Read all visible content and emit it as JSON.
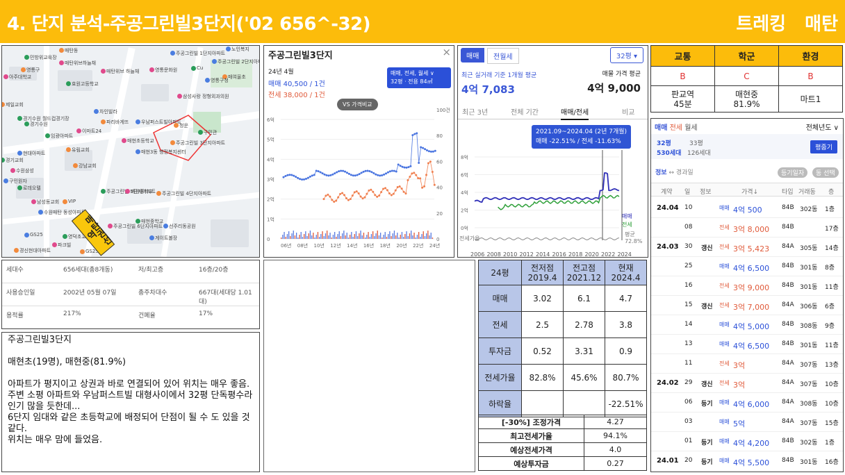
{
  "header": {
    "title": "4. 단지 분석-주공그린빌3단지('02 656^-32)",
    "right": "트레킹 매탄"
  },
  "map": {
    "labels": [
      "노인복지",
      "매탄동",
      "민방위교육장",
      "매탄위브하늘채",
      "주공그린빌 1단지아파트",
      "영통구",
      "효원고등학교",
      "영통문화원",
      "주공그린빌 2단지아파트",
      "매여울초",
      "Cu",
      "매탄위브 하늘채",
      "영통구청",
      "제일교회",
      "경기수원 월드컵경기장",
      "삼성사랑 정형외과의원",
      "차인빌라",
      "파리바게뜨",
      "경기수원",
      "이마트24",
      "우남퍼스트빌아파트",
      "청운",
      "임광아파트",
      "매현초등학교",
      "현대아파트",
      "주공그린빌 3단지아파트",
      "구민관",
      "아주대학교",
      "매현3동 행정복지센터",
      "유림교회",
      "경기교회",
      "수원삼성",
      "구민원자",
      "강남교회",
      "로데오텔",
      "남성동교회",
      "GS25",
      "주공그린빌 4단지아파트",
      "주공그린빌 5단지아파트",
      "매원중학교",
      "수원매탄 동성아파트",
      "VIP",
      "매현중학교",
      "주공그린빌 6단지아파트",
      "선주리동공원",
      "경신현대아파트",
      "영덕초교",
      "파크빌",
      "게이트볼장",
      "GS25"
    ],
    "yellow_label": "매탄권선역"
  },
  "popup": {
    "title": "주공그린빌3단지",
    "close": "×",
    "month": "24년 4월",
    "sale": "매매 40,500 / 1건",
    "jeonse": "전세 38,000 / 1건",
    "select1": "매매, 전세, 월세 ∨",
    "select2": "32평 · 전용 84㎡",
    "vs": "VS 가격비교",
    "yleft": [
      "6억",
      "5억",
      "4억",
      "3억",
      "2억",
      "1억",
      "0"
    ],
    "yright": [
      "100건",
      "80",
      "60",
      "40",
      "20",
      "0"
    ],
    "x": [
      "06년",
      "08년",
      "10년",
      "12년",
      "14년",
      "16년",
      "18년",
      "20년",
      "22년",
      "24년"
    ]
  },
  "rchart": {
    "tab1": "매매",
    "tab2": "전월세",
    "size": "32평 ▾",
    "basis": "최근 실거래 기준 1개월 평균",
    "basis_val": "4억 7,083",
    "ask": "매물 가격 평균",
    "ask_val": "4억 9,000",
    "tabs": [
      "최근 3년",
      "전체 기간",
      "매매/전세",
      "비교"
    ],
    "tip1": "2021.09~2024.04 (2년 7개월)",
    "tip2": "매매 -22.51% / 전세 -11.63%",
    "y": [
      "8억",
      "6억",
      "4억",
      "2억",
      "0억"
    ],
    "gap": "전세가율",
    "gapval": "평균",
    "gappct": "72.8%",
    "leg1": "매매",
    "leg2": "전세",
    "x": [
      "2006",
      "2008",
      "2010",
      "2012",
      "2014",
      "2016",
      "2018",
      "2020",
      "2022",
      "2024"
    ]
  },
  "info": [
    [
      "세대수",
      "656세대(총8개동)",
      "저/최고층",
      "16층/20층"
    ],
    [
      "사용승인일",
      "2002년 05월 07일",
      "총주차대수",
      "667대(세대당 1.01대)"
    ],
    [
      "용적률",
      "217%",
      "건폐율",
      "17%"
    ]
  ],
  "notes": [
    "주공그린빌3단지",
    "",
    "매현초(19명), 매현중(81.9%)",
    "",
    "아파트가 평지이고 상권과 바로 연결되어 있어 위치는 매우 좋음.",
    "주변 소평 아파트와 우남퍼스트빌 대형사이에서 32평 단독평수라 인기 많을 듯한데...",
    "6단지 임대와 같은 초등학교에 배정되어 단점이 될 수 도 있을 것 같다.",
    "위치는 매우 맘에 들었음."
  ],
  "cmp": {
    "head": [
      "24평",
      "전저점\n2019.4",
      "전고점\n2021.12",
      "현재\n2024.4"
    ],
    "rows": [
      [
        "매매",
        "3.02",
        "6.1",
        "4.7"
      ],
      [
        "전세",
        "2.5",
        "2.78",
        "3.8"
      ],
      [
        "투자금",
        "0.52",
        "3.31",
        "0.9"
      ],
      [
        "전세가율",
        "82.8%",
        "45.6%",
        "80.7%"
      ],
      [
        "하락율",
        "",
        "",
        "-22.51%"
      ]
    ]
  },
  "cmp2": [
    [
      "[-30%] 조정가격",
      "4.27"
    ],
    [
      "최고전세가율",
      "94.1%"
    ],
    [
      "예상전세가격",
      "4.0"
    ],
    [
      "예상투자금",
      "0.27"
    ]
  ],
  "trt": {
    "head": [
      "교통",
      "학군",
      "환경"
    ],
    "grade": [
      "B",
      "C",
      "B"
    ],
    "desc": [
      "판교역\n45분",
      "매현중\n81.9%",
      "마트1"
    ]
  },
  "trades": {
    "tabs": [
      "매매",
      "전세",
      "월세"
    ],
    "period": "전체년도 ∨",
    "size": "32평",
    "size2": "33평",
    "hh": "530세대",
    "hh2": "126세대",
    "btn": "평줍기",
    "info1": "정보",
    "info2": "↔ 경과일",
    "b1": "등기일자",
    "b2": "동 선택",
    "cols": [
      "계약",
      "일",
      "정보",
      "가격↓",
      "타입",
      "거래동",
      "층"
    ],
    "rows": [
      [
        "24.04",
        "10",
        "",
        "매매",
        "4억 500",
        "84B",
        "302동",
        "1층"
      ],
      [
        "",
        "08",
        "",
        "전세",
        "3억 8,000",
        "84B",
        "",
        "17층"
      ],
      [
        "24.03",
        "30",
        "갱신",
        "전세",
        "3억 5,423",
        "84A",
        "305동",
        "14층"
      ],
      [
        "",
        "25",
        "",
        "매매",
        "4억 6,500",
        "84B",
        "301동",
        "8층"
      ],
      [
        "",
        "16",
        "",
        "전세",
        "3억 9,000",
        "84B",
        "301동",
        "11층"
      ],
      [
        "",
        "15",
        "갱신",
        "전세",
        "3억 7,000",
        "84A",
        "306동",
        "6층"
      ],
      [
        "",
        "14",
        "",
        "매매",
        "4억 5,000",
        "84B",
        "308동",
        "9층"
      ],
      [
        "",
        "13",
        "",
        "매매",
        "4억 6,500",
        "84B",
        "301동",
        "11층"
      ],
      [
        "",
        "11",
        "",
        "전세",
        "3억",
        "84A",
        "307동",
        "13층"
      ],
      [
        "24.02",
        "29",
        "갱신",
        "전세",
        "3억",
        "84A",
        "307동",
        "10층"
      ],
      [
        "",
        "06",
        "등기",
        "매매",
        "4억 6,000",
        "84A",
        "308동",
        "10층"
      ],
      [
        "",
        "03",
        "",
        "매매",
        "5억",
        "84A",
        "307동",
        "15층"
      ],
      [
        "",
        "01",
        "등기",
        "매매",
        "4억 4,200",
        "84B",
        "302동",
        "1층"
      ],
      [
        "24.01",
        "20",
        "등기",
        "매매",
        "4억 5,500",
        "84B",
        "301동",
        "16층"
      ]
    ]
  }
}
